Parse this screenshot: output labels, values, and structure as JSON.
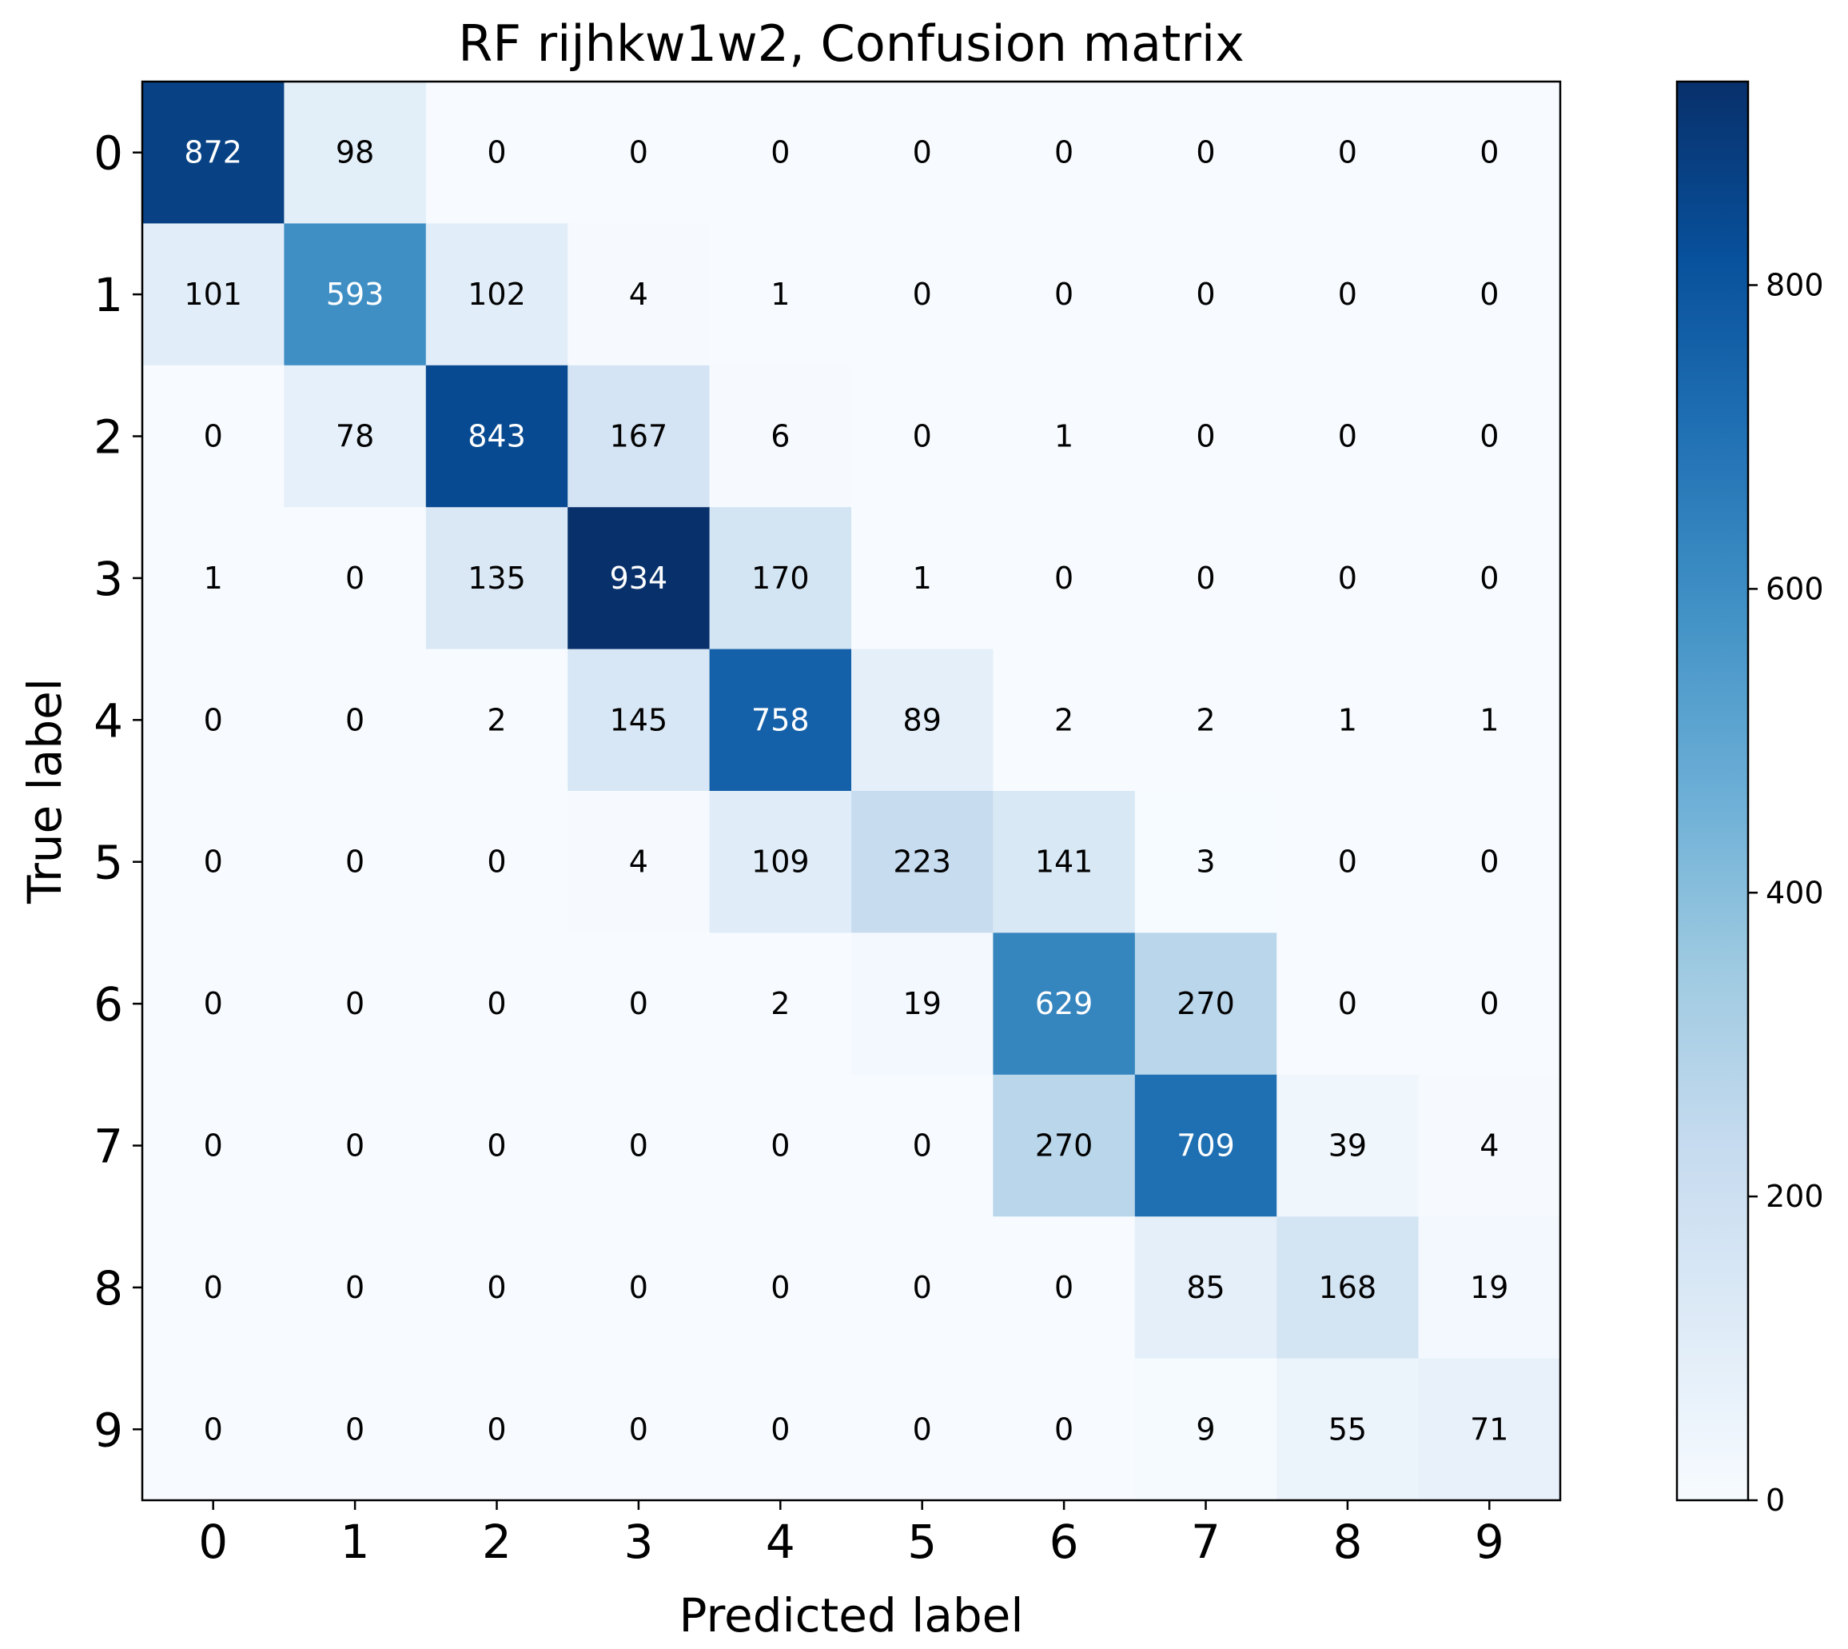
{
  "chart_data": {
    "type": "heatmap",
    "title": "RF rijhkw1w2, Confusion matrix",
    "xlabel": "Predicted label",
    "ylabel": "True label",
    "x_ticks": [
      "0",
      "1",
      "2",
      "3",
      "4",
      "5",
      "6",
      "7",
      "8",
      "9"
    ],
    "y_ticks": [
      "0",
      "1",
      "2",
      "3",
      "4",
      "5",
      "6",
      "7",
      "8",
      "9"
    ],
    "matrix": [
      [
        872,
        98,
        0,
        0,
        0,
        0,
        0,
        0,
        0,
        0
      ],
      [
        101,
        593,
        102,
        4,
        1,
        0,
        0,
        0,
        0,
        0
      ],
      [
        0,
        78,
        843,
        167,
        6,
        0,
        1,
        0,
        0,
        0
      ],
      [
        1,
        0,
        135,
        934,
        170,
        1,
        0,
        0,
        0,
        0
      ],
      [
        0,
        0,
        2,
        145,
        758,
        89,
        2,
        2,
        1,
        1
      ],
      [
        0,
        0,
        0,
        4,
        109,
        223,
        141,
        3,
        0,
        0
      ],
      [
        0,
        0,
        0,
        0,
        2,
        19,
        629,
        270,
        0,
        0
      ],
      [
        0,
        0,
        0,
        0,
        0,
        0,
        270,
        709,
        39,
        4
      ],
      [
        0,
        0,
        0,
        0,
        0,
        0,
        0,
        85,
        168,
        19
      ],
      [
        0,
        0,
        0,
        0,
        0,
        0,
        0,
        9,
        55,
        71
      ]
    ],
    "colormap": "Blues",
    "colorbar": {
      "min": 0,
      "max": 934,
      "ticks": [
        0,
        200,
        400,
        600,
        800
      ]
    },
    "grid": false,
    "legend": "colorbar-right"
  },
  "colors": {
    "low": "#f7fbff",
    "high": "#08306b",
    "text_dark": "#000000",
    "text_light": "#ffffff"
  }
}
